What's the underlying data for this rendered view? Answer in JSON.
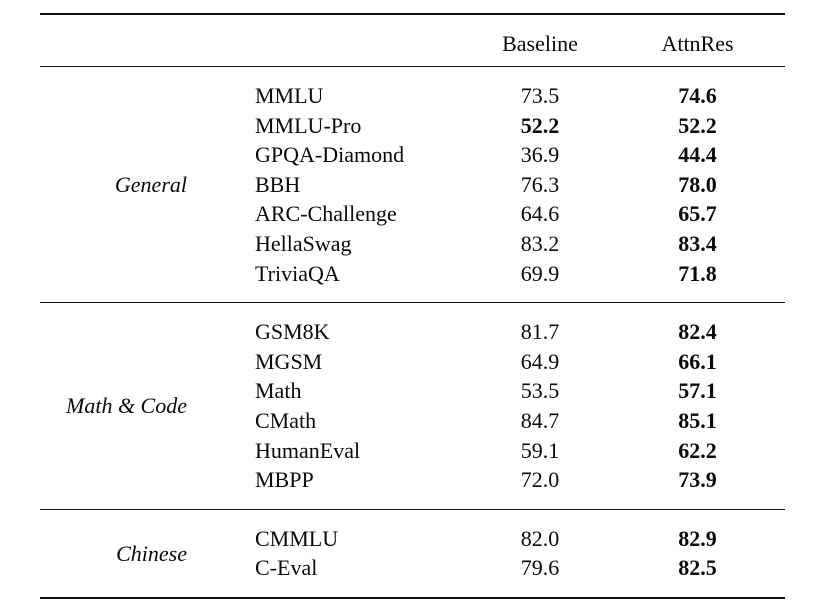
{
  "table": {
    "columns": [
      "",
      "",
      "Baseline",
      "AttnRes"
    ],
    "groups": [
      {
        "label": "General",
        "rows": [
          {
            "benchmark": "MMLU",
            "baseline": "73.5",
            "baseline_bold": false,
            "attnres": "74.6",
            "attnres_bold": true
          },
          {
            "benchmark": "MMLU-Pro",
            "baseline": "52.2",
            "baseline_bold": true,
            "attnres": "52.2",
            "attnres_bold": true
          },
          {
            "benchmark": "GPQA-Diamond",
            "baseline": "36.9",
            "baseline_bold": false,
            "attnres": "44.4",
            "attnres_bold": true
          },
          {
            "benchmark": "BBH",
            "baseline": "76.3",
            "baseline_bold": false,
            "attnres": "78.0",
            "attnres_bold": true
          },
          {
            "benchmark": "ARC-Challenge",
            "baseline": "64.6",
            "baseline_bold": false,
            "attnres": "65.7",
            "attnres_bold": true
          },
          {
            "benchmark": "HellaSwag",
            "baseline": "83.2",
            "baseline_bold": false,
            "attnres": "83.4",
            "attnres_bold": true
          },
          {
            "benchmark": "TriviaQA",
            "baseline": "69.9",
            "baseline_bold": false,
            "attnres": "71.8",
            "attnres_bold": true
          }
        ]
      },
      {
        "label": "Math & Code",
        "rows": [
          {
            "benchmark": "GSM8K",
            "baseline": "81.7",
            "baseline_bold": false,
            "attnres": "82.4",
            "attnres_bold": true
          },
          {
            "benchmark": "MGSM",
            "baseline": "64.9",
            "baseline_bold": false,
            "attnres": "66.1",
            "attnres_bold": true
          },
          {
            "benchmark": "Math",
            "baseline": "53.5",
            "baseline_bold": false,
            "attnres": "57.1",
            "attnres_bold": true
          },
          {
            "benchmark": "CMath",
            "baseline": "84.7",
            "baseline_bold": false,
            "attnres": "85.1",
            "attnres_bold": true
          },
          {
            "benchmark": "HumanEval",
            "baseline": "59.1",
            "baseline_bold": false,
            "attnres": "62.2",
            "attnres_bold": true
          },
          {
            "benchmark": "MBPP",
            "baseline": "72.0",
            "baseline_bold": false,
            "attnres": "73.9",
            "attnres_bold": true
          }
        ]
      },
      {
        "label": "Chinese",
        "rows": [
          {
            "benchmark": "CMMLU",
            "baseline": "82.0",
            "baseline_bold": false,
            "attnres": "82.9",
            "attnres_bold": true
          },
          {
            "benchmark": "C-Eval",
            "baseline": "79.6",
            "baseline_bold": false,
            "attnres": "82.5",
            "attnres_bold": true
          }
        ]
      }
    ],
    "text_color": "#0a0a0a",
    "rule_color": "#131313"
  }
}
